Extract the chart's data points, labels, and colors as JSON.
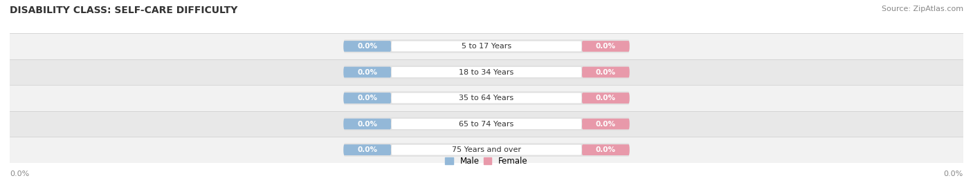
{
  "title": "DISABILITY CLASS: SELF-CARE DIFFICULTY",
  "source": "Source: ZipAtlas.com",
  "categories": [
    "5 to 17 Years",
    "18 to 34 Years",
    "35 to 64 Years",
    "65 to 74 Years",
    "75 Years and over"
  ],
  "male_values": [
    0.0,
    0.0,
    0.0,
    0.0,
    0.0
  ],
  "female_values": [
    0.0,
    0.0,
    0.0,
    0.0,
    0.0
  ],
  "male_color": "#93b8d8",
  "female_color": "#e899aa",
  "track_color": "#e2e2e2",
  "row_colors": [
    "#f2f2f2",
    "#e8e8e8"
  ],
  "label_fg": "white",
  "category_fg": "#333333",
  "axis_label_color": "#888888",
  "title_color": "#333333",
  "source_color": "#888888",
  "x_left_label": "0.0%",
  "x_right_label": "0.0%",
  "legend_male": "Male",
  "legend_female": "Female",
  "title_fontsize": 10,
  "source_fontsize": 8,
  "figsize": [
    14.06,
    2.68
  ],
  "dpi": 100,
  "n_rows": 5
}
